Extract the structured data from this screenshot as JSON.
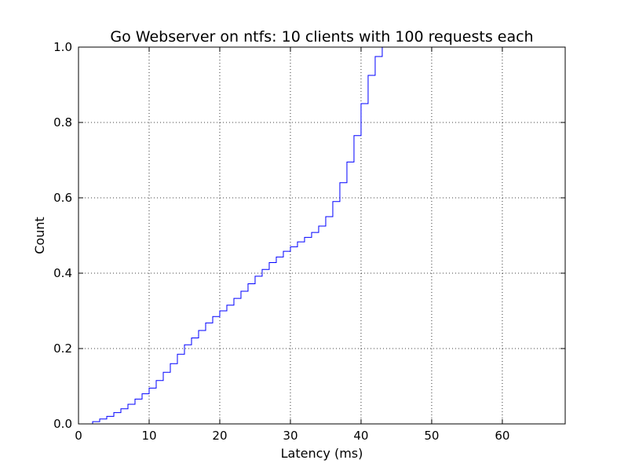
{
  "chart_data": {
    "type": "line",
    "title": "Go Webserver on ntfs: 10 clients with 100 requests each",
    "xlabel": "Latency (ms)",
    "ylabel": "Count",
    "xlim": [
      0,
      68.9
    ],
    "ylim": [
      0,
      1.0
    ],
    "grid": true,
    "xticks": [
      0,
      10,
      20,
      30,
      40,
      50,
      60
    ],
    "xtick_labels": [
      "0",
      "10",
      "20",
      "30",
      "40",
      "50",
      "60"
    ],
    "yticks": [
      0.0,
      0.2,
      0.4,
      0.6,
      0.8,
      1.0
    ],
    "ytick_labels": [
      "0.0",
      "0.2",
      "0.4",
      "0.6",
      "0.8",
      "1.0"
    ],
    "series": [
      {
        "color": "#0000ff",
        "step": true,
        "x": [
          1,
          2,
          3,
          4,
          5,
          6,
          7,
          8,
          9,
          10,
          11,
          12,
          13,
          14,
          15,
          16,
          17,
          18,
          19,
          20,
          21,
          22,
          23,
          24,
          25,
          26,
          27,
          28,
          29,
          30,
          31,
          32,
          33,
          34,
          35,
          36,
          37,
          38,
          39,
          40,
          41,
          42,
          43
        ],
        "y": [
          0.0,
          0.006,
          0.013,
          0.02,
          0.03,
          0.04,
          0.052,
          0.066,
          0.08,
          0.095,
          0.115,
          0.137,
          0.16,
          0.185,
          0.21,
          0.228,
          0.248,
          0.268,
          0.285,
          0.3,
          0.315,
          0.333,
          0.352,
          0.372,
          0.392,
          0.41,
          0.428,
          0.443,
          0.458,
          0.47,
          0.483,
          0.495,
          0.508,
          0.525,
          0.55,
          0.59,
          0.64,
          0.695,
          0.765,
          0.85,
          0.925,
          0.975,
          1.0
        ]
      }
    ]
  }
}
